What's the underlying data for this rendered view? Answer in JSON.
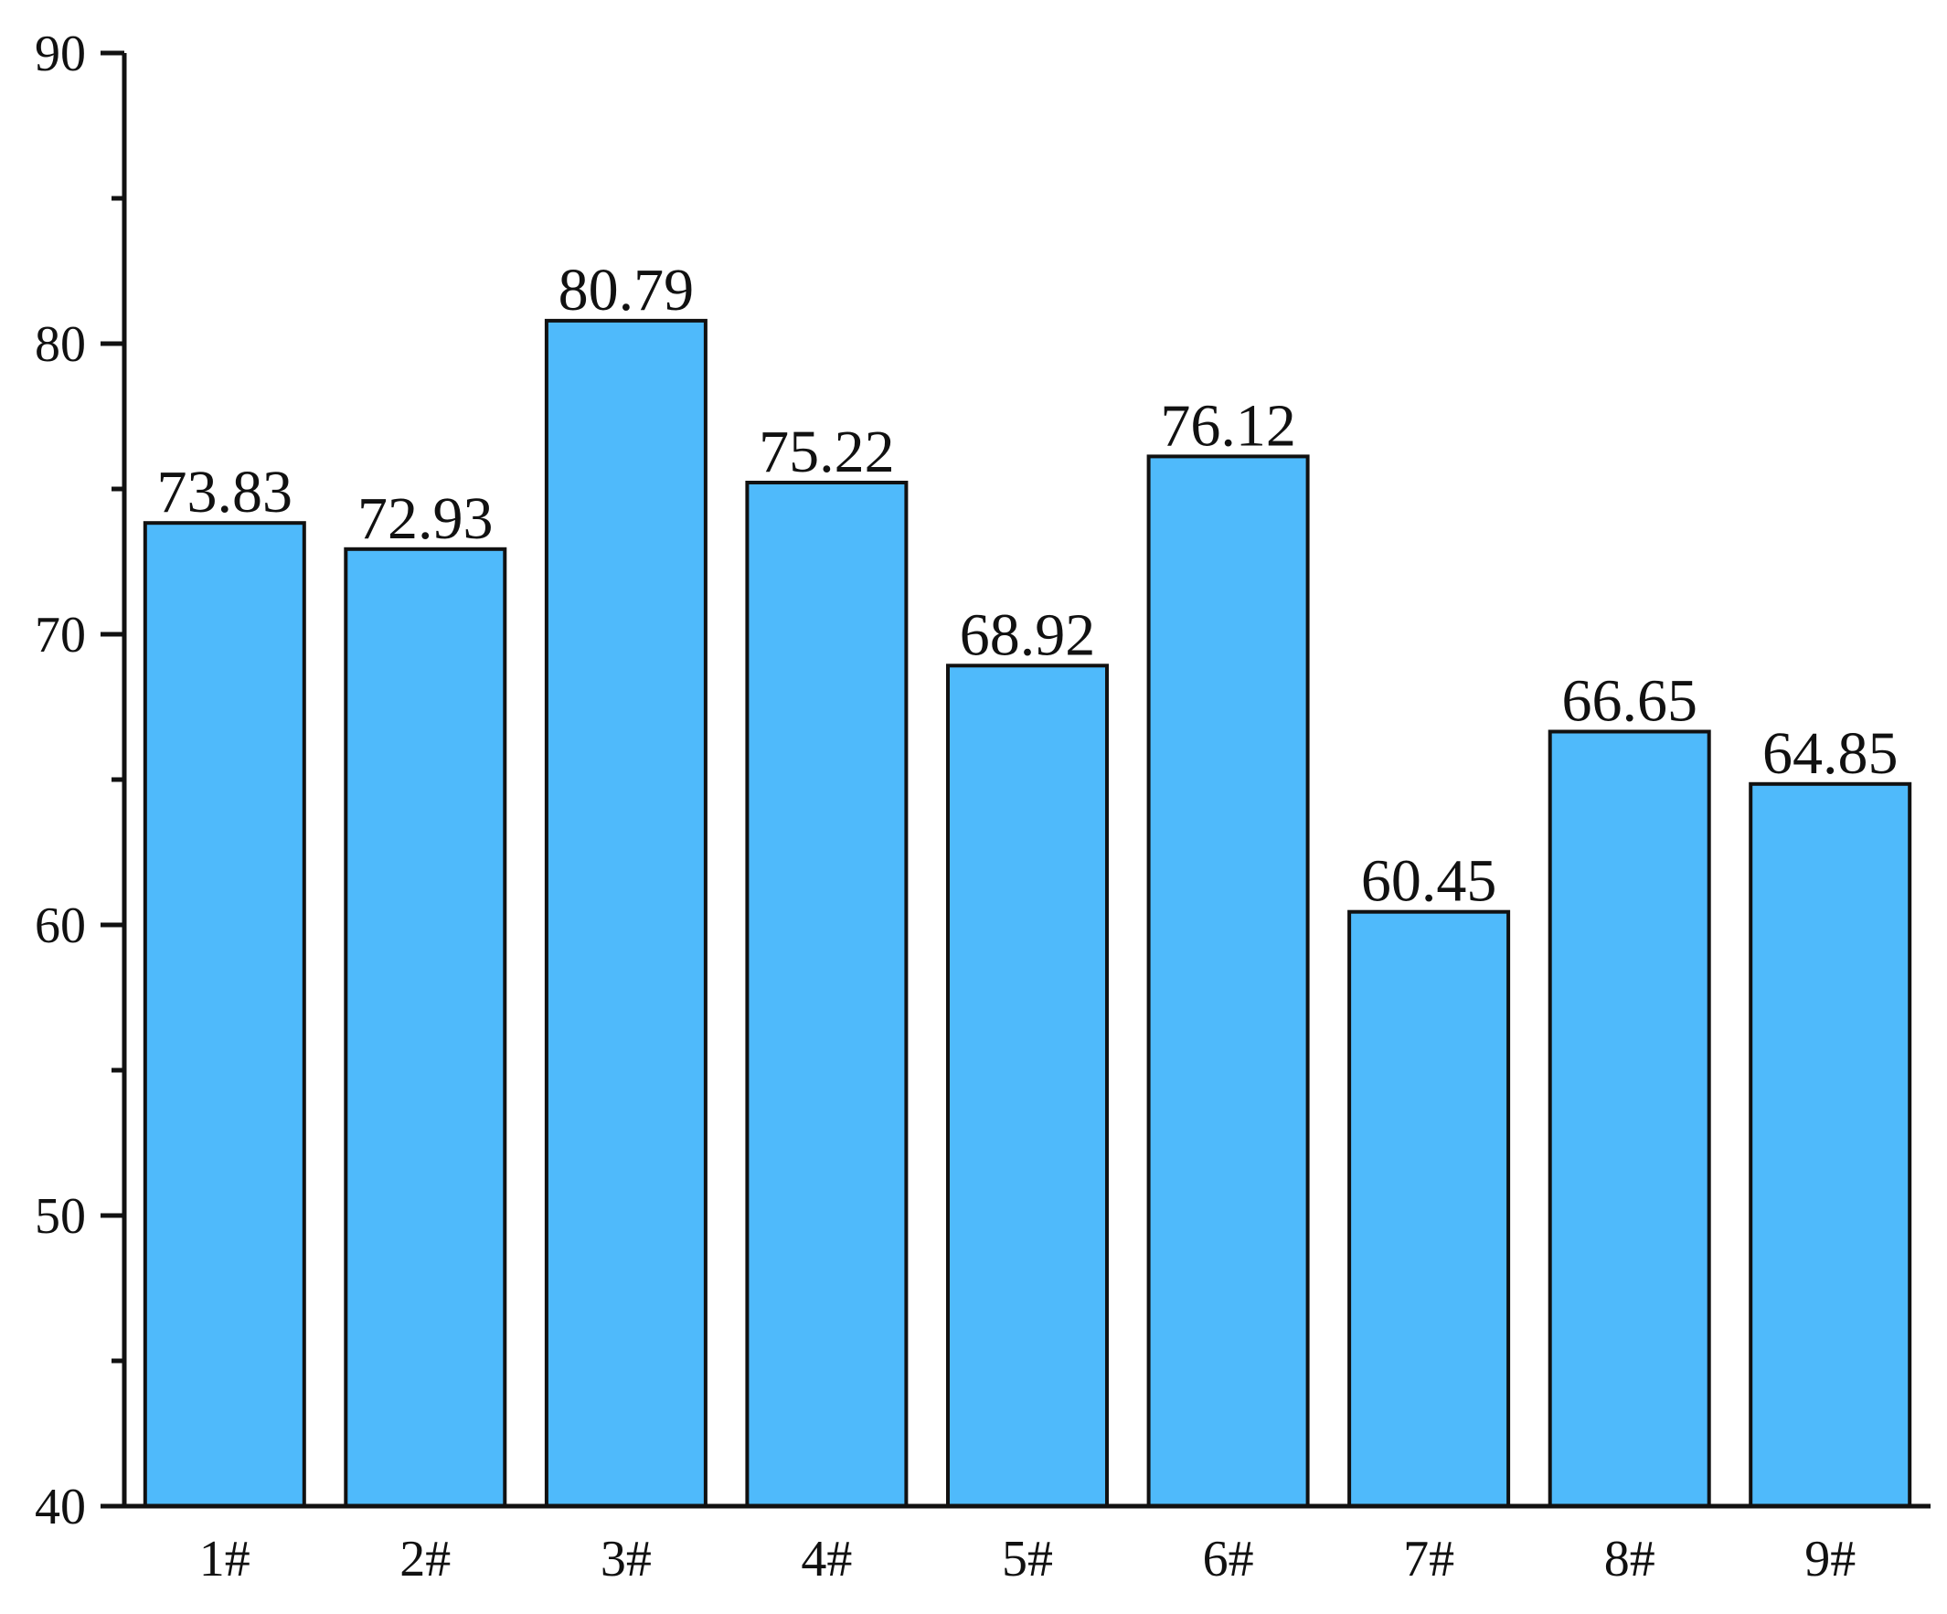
{
  "chart_data": {
    "type": "bar",
    "categories": [
      "1#",
      "2#",
      "3#",
      "4#",
      "5#",
      "6#",
      "7#",
      "8#",
      "9#"
    ],
    "values": [
      73.83,
      72.93,
      80.79,
      75.22,
      68.92,
      76.12,
      60.45,
      66.65,
      64.85
    ],
    "data_labels": [
      "73.83",
      "72.93",
      "80.79",
      "75.22",
      "68.92",
      "76.12",
      "60.45",
      "66.65",
      "64.85"
    ],
    "y_ticks": [
      40,
      50,
      60,
      70,
      80,
      90
    ],
    "y_tick_labels": [
      "40",
      "50",
      "60",
      "70",
      "80",
      "90"
    ],
    "ylim": [
      40,
      90
    ],
    "minor_tick_step": 5,
    "grid": false,
    "bar_color": "#4FBAFB",
    "outline_color": "#111111"
  }
}
